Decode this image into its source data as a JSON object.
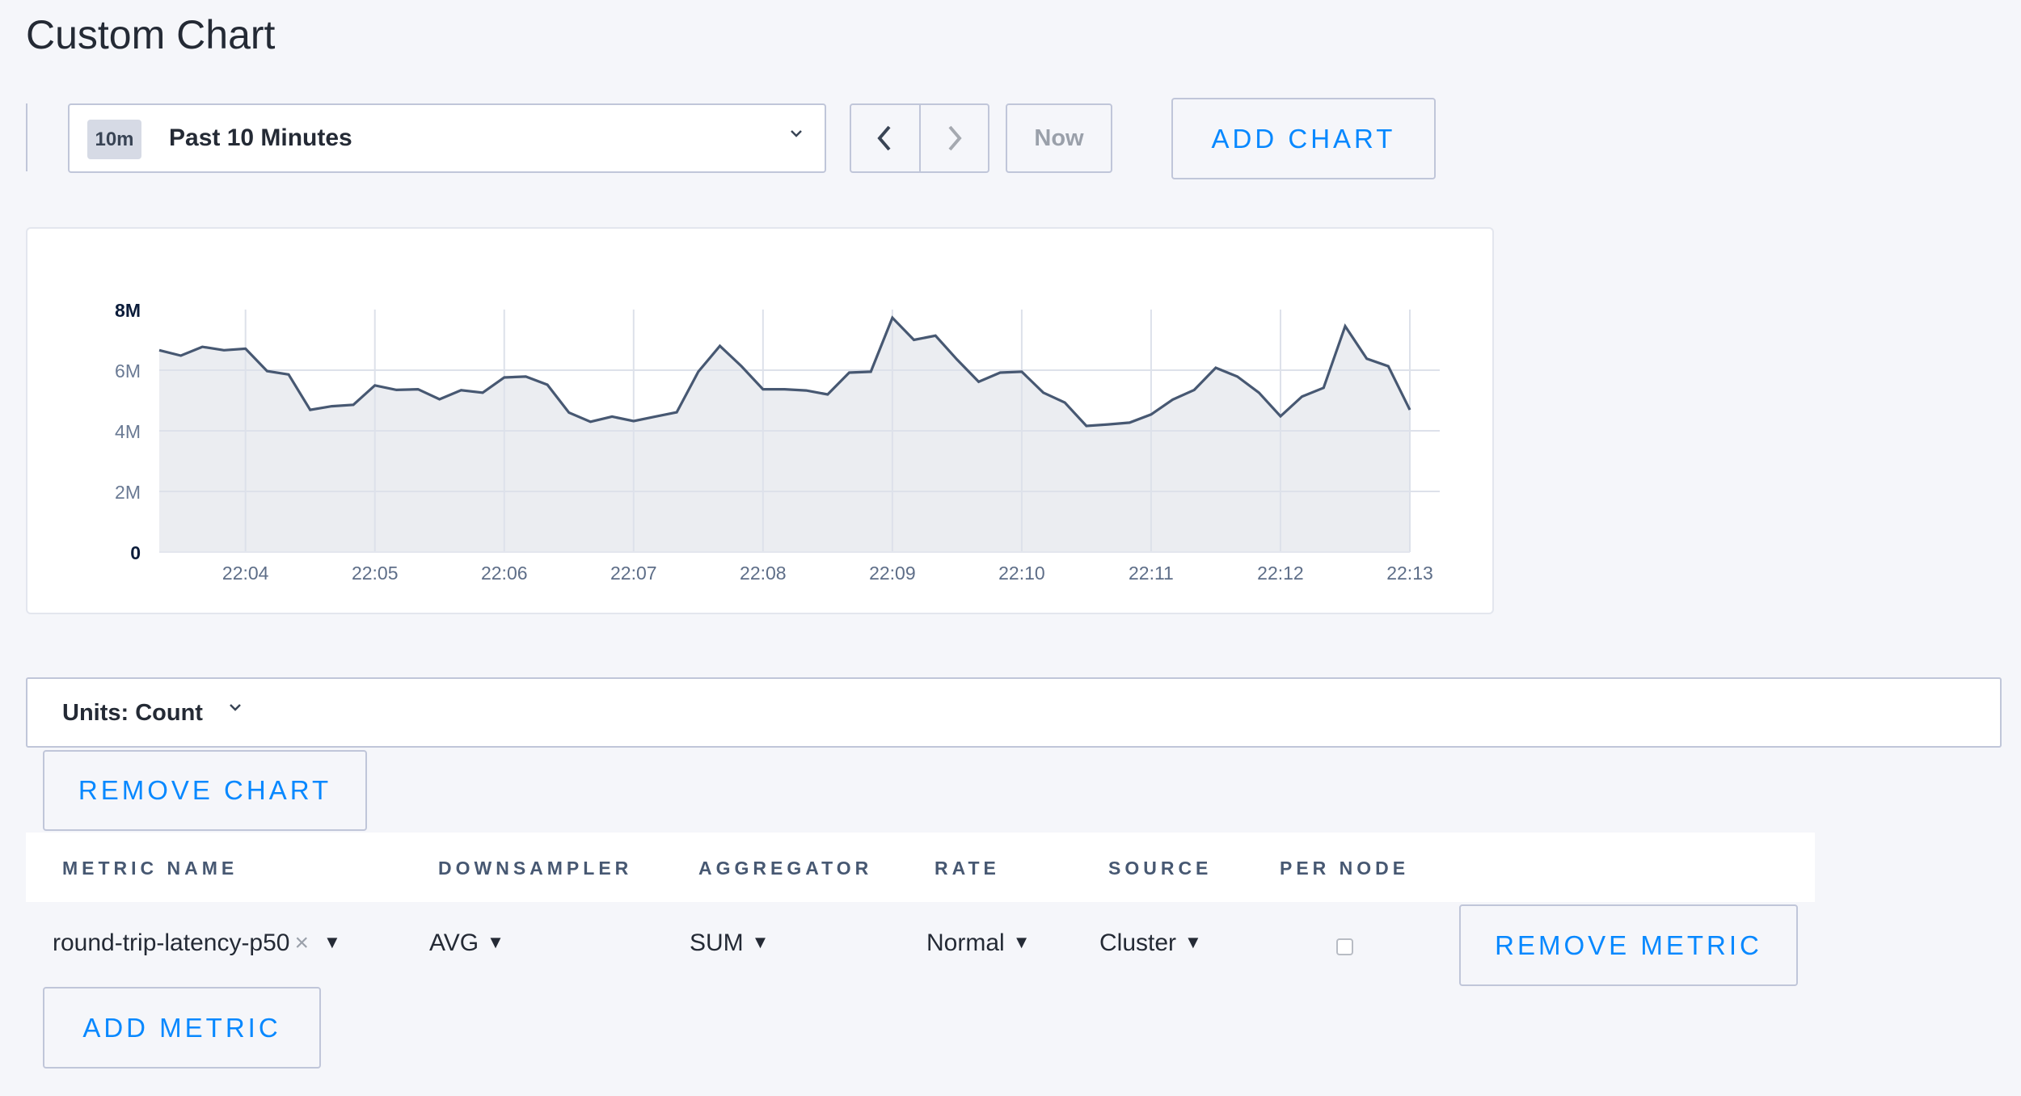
{
  "page": {
    "title": "Custom Chart"
  },
  "toolbar": {
    "range_badge": "10m",
    "range_label": "Past 10 Minutes",
    "prev_icon": "chevron-left-icon",
    "next_icon": "chevron-right-icon",
    "now_label": "Now",
    "add_chart_label": "ADD CHART"
  },
  "chart_data": {
    "type": "area",
    "title": "",
    "xlabel": "",
    "ylabel": "",
    "ylim": [
      0,
      8000000
    ],
    "y_ticks": [
      "0",
      "2M",
      "4M",
      "6M",
      "8M"
    ],
    "y_tick_values": [
      0,
      2000000,
      4000000,
      6000000,
      8000000
    ],
    "x_ticks": [
      "22:04",
      "22:05",
      "22:06",
      "22:07",
      "22:08",
      "22:09",
      "22:10",
      "22:11",
      "22:12",
      "22:13"
    ],
    "grid": true,
    "line_color": "#475872",
    "fill_color": "#ebedf1",
    "x": [
      "22:03:20",
      "22:03:30",
      "22:03:40",
      "22:03:50",
      "22:04:00",
      "22:04:10",
      "22:04:20",
      "22:04:30",
      "22:04:40",
      "22:04:50",
      "22:05:00",
      "22:05:10",
      "22:05:20",
      "22:05:30",
      "22:05:40",
      "22:05:50",
      "22:06:00",
      "22:06:10",
      "22:06:20",
      "22:06:30",
      "22:06:40",
      "22:06:50",
      "22:07:00",
      "22:07:10",
      "22:07:20",
      "22:07:30",
      "22:07:40",
      "22:07:50",
      "22:08:00",
      "22:08:10",
      "22:08:20",
      "22:08:30",
      "22:08:40",
      "22:08:50",
      "22:09:00",
      "22:09:10",
      "22:09:20",
      "22:09:30",
      "22:09:40",
      "22:09:50",
      "22:10:00",
      "22:10:10",
      "22:10:20",
      "22:10:30",
      "22:10:40",
      "22:10:50",
      "22:11:00",
      "22:11:10",
      "22:11:20",
      "22:11:30",
      "22:11:40",
      "22:11:50",
      "22:12:00",
      "22:12:10",
      "22:12:20",
      "22:12:30",
      "22:12:40",
      "22:12:50",
      "22:13:00"
    ],
    "values": [
      6660000,
      6480000,
      6770000,
      6660000,
      6710000,
      5970000,
      5860000,
      4690000,
      4810000,
      4860000,
      5500000,
      5350000,
      5370000,
      5040000,
      5340000,
      5260000,
      5760000,
      5790000,
      5520000,
      4600000,
      4300000,
      4470000,
      4320000,
      4470000,
      4610000,
      5950000,
      6800000,
      6130000,
      5370000,
      5370000,
      5330000,
      5200000,
      5920000,
      5950000,
      7730000,
      7000000,
      7140000,
      6350000,
      5620000,
      5920000,
      5950000,
      5260000,
      4930000,
      4160000,
      4210000,
      4270000,
      4540000,
      5030000,
      5350000,
      6080000,
      5790000,
      5260000,
      4480000,
      5130000,
      5420000,
      7450000,
      6380000,
      6130000,
      4690000
    ]
  },
  "units": {
    "label": "Units: Count",
    "chevron": "chevron-down-icon"
  },
  "remove_chart_label": "REMOVE CHART",
  "table": {
    "headers": [
      "METRIC NAME",
      "DOWNSAMPLER",
      "AGGREGATOR",
      "RATE",
      "SOURCE",
      "PER NODE"
    ],
    "row": {
      "metric_name": "round-trip-latency-p50",
      "clear": "×",
      "caret": "▼",
      "downsampler": "AVG",
      "aggregator": "SUM",
      "rate": "Normal",
      "source": "Cluster",
      "per_node": false
    },
    "remove_metric_label": "REMOVE METRIC"
  },
  "add_metric_label": "ADD METRIC"
}
